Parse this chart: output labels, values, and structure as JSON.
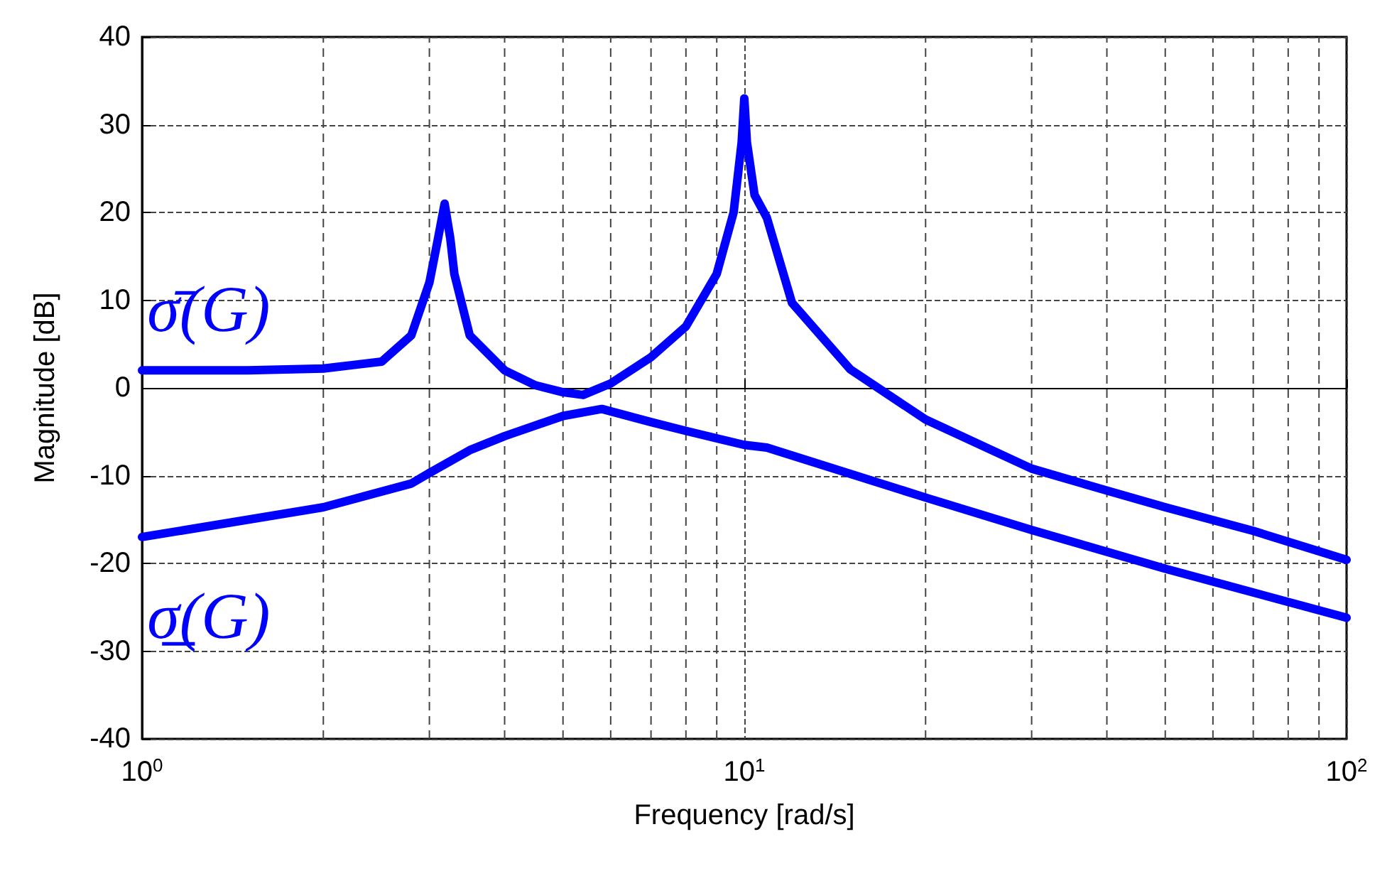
{
  "chart_data": {
    "type": "line",
    "xlabel": "Frequency [rad/s]",
    "ylabel": "Magnitude [dB]",
    "xlim": [
      1,
      100
    ],
    "xticks": [
      {
        "value": 1,
        "label": "10$^{0}$"
      },
      {
        "value": 10,
        "label": "10$^{1}$"
      },
      {
        "value": 100,
        "label": "10$^{2}$"
      }
    ],
    "ylim": [
      -40,
      40
    ],
    "yticks": [
      -40,
      -30,
      -20,
      -10,
      0,
      10,
      20,
      30,
      40
    ],
    "log": "x",
    "grid": true,
    "legend": false,
    "marker": "none",
    "line_style": "solid",
    "series": [
      {
        "name": "σ̄(G)",
        "color": "#0000ff",
        "x": [
          1,
          1.5,
          2,
          2.5,
          2.8,
          3,
          3.1,
          3.18,
          3.25,
          3.3,
          3.5,
          4,
          4.5,
          5,
          5.4,
          6,
          7,
          8,
          9,
          9.6,
          9.9,
          10,
          10.1,
          10.4,
          10.9,
          12,
          15,
          20,
          30,
          40,
          50,
          70,
          100
        ],
        "values": [
          2,
          2,
          2.2,
          3,
          6,
          12,
          17,
          21,
          17,
          13,
          6,
          2,
          0.3,
          -0.5,
          -0.8,
          0.5,
          3.5,
          7,
          13,
          20,
          28,
          33,
          28,
          22,
          19.4,
          9.7,
          2.1,
          -3.6,
          -9.2,
          -11.7,
          -13.6,
          -16.3,
          -19.6
        ]
      },
      {
        "name": "σ̲(G)",
        "color": "#0000ff",
        "x": [
          1,
          2,
          2.8,
          3,
          3.5,
          4,
          5,
          5.8,
          7,
          8,
          10,
          10.9,
          20,
          30,
          50,
          100
        ],
        "values": [
          -17,
          -13.6,
          -10.9,
          -9.7,
          -7.1,
          -5.5,
          -3.2,
          -2.4,
          -3.9,
          -4.9,
          -6.5,
          -6.8,
          -12.5,
          -16.2,
          -20.6,
          -26.2
        ]
      }
    ]
  }
}
